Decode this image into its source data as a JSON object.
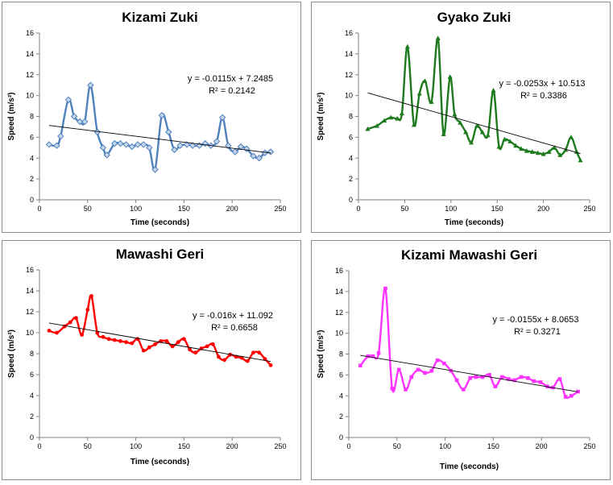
{
  "chart_data": [
    {
      "type": "line",
      "title": "Kizami Zuki",
      "xlabel": "Time (seconds)",
      "ylabel": "Speed (m/s²)",
      "xlim": [
        0,
        250
      ],
      "ylim": [
        0,
        16
      ],
      "xticks": [
        "0",
        "50",
        "100",
        "150",
        "200",
        "250"
      ],
      "yticks": [
        "0",
        "2",
        "4",
        "6",
        "8",
        "10",
        "12",
        "14",
        "16"
      ],
      "color": "#4f81bd",
      "marker": "diamond",
      "trendline": {
        "equation": "y = -0.0115x + 7.2485",
        "r2": "R² = 0.2142",
        "slope": -0.0115,
        "intercept": 7.2485
      },
      "x": [
        10,
        18,
        22,
        30,
        36,
        42,
        47,
        53,
        60,
        66,
        70,
        78,
        84,
        90,
        96,
        102,
        108,
        114,
        120,
        127,
        134,
        140,
        146,
        153,
        159,
        166,
        172,
        178,
        184,
        190,
        196,
        203,
        209,
        215,
        222,
        228,
        234,
        240
      ],
      "y": [
        5.3,
        5.2,
        6.1,
        9.6,
        8.0,
        7.5,
        7.5,
        11.0,
        6.5,
        5.0,
        4.3,
        5.4,
        5.4,
        5.3,
        5.1,
        5.3,
        5.3,
        5.0,
        2.9,
        8.1,
        6.5,
        4.8,
        5.2,
        5.3,
        5.2,
        5.2,
        5.4,
        5.2,
        5.6,
        7.9,
        5.2,
        4.6,
        5.1,
        4.9,
        4.2,
        4.0,
        4.5,
        4.6
      ]
    },
    {
      "type": "line",
      "title": "Gyako Zuki",
      "xlabel": "Time (seconds)",
      "ylabel": "Speed (m/s²)",
      "xlim": [
        0,
        250
      ],
      "ylim": [
        0,
        16
      ],
      "xticks": [
        "0",
        "50",
        "100",
        "150",
        "200",
        "250"
      ],
      "yticks": [
        "0",
        "2",
        "4",
        "6",
        "8",
        "10",
        "12",
        "14",
        "16"
      ],
      "color": "#1e7a1e",
      "marker": "triangle",
      "trendline": {
        "equation": "y = -0.0253x + 10.513",
        "r2": "R² = 0.3386",
        "slope": -0.0253,
        "intercept": 10.513
      },
      "x": [
        10,
        20,
        28,
        35,
        42,
        47,
        53,
        60,
        66,
        72,
        79,
        86,
        92,
        99,
        104,
        110,
        116,
        122,
        128,
        134,
        140,
        146,
        152,
        158,
        164,
        170,
        176,
        182,
        188,
        194,
        200,
        206,
        212,
        218,
        224,
        230,
        236,
        240
      ],
      "y": [
        6.8,
        7.1,
        7.6,
        7.9,
        7.8,
        8.3,
        14.7,
        7.2,
        10.2,
        11.4,
        9.4,
        15.5,
        6.3,
        11.8,
        8.2,
        7.4,
        6.5,
        5.5,
        7.1,
        6.5,
        6.2,
        10.5,
        5.1,
        5.8,
        5.6,
        5.2,
        4.9,
        4.7,
        4.6,
        4.5,
        4.4,
        4.6,
        5.0,
        4.3,
        4.8,
        6.0,
        4.6,
        3.8
      ]
    },
    {
      "type": "line",
      "title": "Mawashi Geri",
      "xlabel": "Time (seconds)",
      "ylabel": "Speed (m/s²)",
      "xlim": [
        0,
        250
      ],
      "ylim": [
        0,
        16
      ],
      "xticks": [
        "0",
        "50",
        "100",
        "150",
        "200",
        "250"
      ],
      "yticks": [
        "0",
        "2",
        "4",
        "6",
        "8",
        "10",
        "12",
        "14",
        "16"
      ],
      "color": "#ff0000",
      "marker": "circle",
      "trendline": {
        "equation": "y = -0.016x + 11.092",
        "r2": "R² = 0.6658",
        "slope": -0.016,
        "intercept": 11.092
      },
      "x": [
        10,
        18,
        26,
        32,
        38,
        44,
        50,
        54,
        60,
        66,
        72,
        78,
        84,
        90,
        96,
        102,
        108,
        114,
        120,
        126,
        132,
        138,
        144,
        150,
        156,
        162,
        168,
        174,
        180,
        186,
        192,
        198,
        204,
        210,
        216,
        222,
        228,
        234,
        240
      ],
      "y": [
        10.2,
        10.0,
        10.6,
        11.0,
        11.4,
        9.8,
        12.2,
        13.5,
        10.0,
        9.6,
        9.4,
        9.3,
        9.2,
        9.1,
        9.0,
        9.4,
        8.3,
        8.6,
        8.9,
        9.2,
        9.2,
        8.7,
        9.1,
        9.4,
        8.4,
        8.1,
        8.5,
        8.7,
        8.9,
        7.7,
        7.4,
        7.9,
        7.7,
        7.6,
        7.3,
        8.1,
        8.1,
        7.5,
        6.9
      ]
    },
    {
      "type": "line",
      "title": "Kizami Mawashi Geri",
      "xlabel": "Time (seconds)",
      "ylabel": "Speed (m/s²)",
      "xlim": [
        0,
        250
      ],
      "ylim": [
        0,
        16
      ],
      "xticks": [
        "0",
        "50",
        "100",
        "150",
        "200",
        "250"
      ],
      "yticks": [
        "0",
        "2",
        "4",
        "6",
        "8",
        "10",
        "12",
        "14",
        "16"
      ],
      "color": "#ff33ff",
      "marker": "square",
      "trendline": {
        "equation": "y = -0.0155x + 8.0653",
        "r2": "R² = 0.3271",
        "slope": -0.0155,
        "intercept": 8.0653
      },
      "x": [
        12,
        20,
        25,
        31,
        38,
        45,
        52,
        59,
        65,
        72,
        79,
        86,
        92,
        99,
        106,
        112,
        119,
        126,
        132,
        139,
        146,
        152,
        159,
        166,
        172,
        179,
        186,
        192,
        199,
        206,
        212,
        219,
        225,
        231,
        238
      ],
      "y": [
        6.9,
        7.8,
        7.8,
        8.1,
        14.3,
        4.7,
        6.5,
        4.6,
        5.8,
        6.5,
        6.2,
        6.4,
        7.4,
        7.1,
        6.4,
        5.5,
        4.6,
        5.7,
        5.8,
        5.8,
        6.0,
        4.9,
        5.8,
        5.6,
        5.5,
        5.8,
        5.7,
        5.4,
        5.3,
        4.9,
        4.8,
        5.6,
        3.9,
        4.0,
        4.4
      ]
    }
  ]
}
